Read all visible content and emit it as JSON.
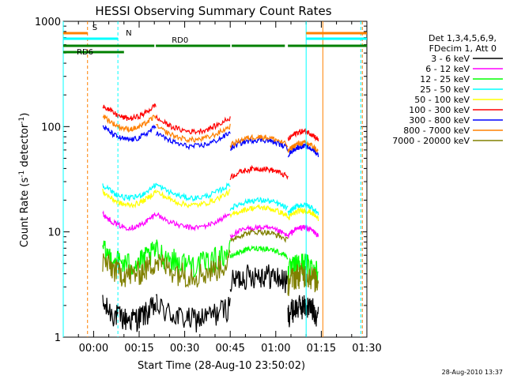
{
  "chart_data": {
    "type": "line",
    "title": "HESSI Observing Summary Count Rates",
    "xlabel": "Start Time (28-Aug-10 23:50:02)",
    "ylabel_main": "Count Rate (s",
    "ylabel_sup1": "-1",
    "ylabel_mid": " detector",
    "ylabel_sup2": "-1",
    "ylabel_end": ")",
    "y_scale": "log",
    "ylim": [
      1,
      1000
    ],
    "xlim_minutes": [
      -10,
      30
    ],
    "x_ticks": [
      {
        "label": "00:00",
        "t": 0
      },
      {
        "label": "00:15",
        "t": 15
      },
      {
        "label": "00:30",
        "t": 30
      },
      {
        "label": "00:45",
        "t": 45
      },
      {
        "label": "01:00",
        "t": 60
      },
      {
        "label": "01:15",
        "t": 75
      },
      {
        "label": "01:30",
        "t": 90
      }
    ],
    "y_ticks": [
      {
        "label": "1",
        "v": 1
      },
      {
        "label": "10",
        "v": 10
      },
      {
        "label": "100",
        "v": 100
      },
      {
        "label": "1000",
        "v": 1000
      }
    ],
    "legend_header": [
      "Det 1,3,4,5,6,9,",
      "FDecim 1, Att 0"
    ],
    "legend_placement": "right",
    "series": [
      {
        "name": "3 - 6 keV",
        "color": "#000000",
        "levels": [
          4.5,
          1.5,
          1.5,
          4.0,
          2.0
        ]
      },
      {
        "name": "6 - 12 keV",
        "color": "#ff00ff",
        "levels": [
          12,
          11,
          11,
          11,
          11
        ]
      },
      {
        "name": "12 - 25 keV",
        "color": "#00ff00",
        "levels": [
          8,
          5,
          5,
          7,
          5
        ]
      },
      {
        "name": "25 - 50 keV",
        "color": "#00ffff",
        "levels": [
          32,
          21,
          21,
          20,
          18
        ]
      },
      {
        "name": "50 - 100 keV",
        "color": "#ffff00",
        "levels": [
          22,
          18,
          18,
          17,
          16
        ]
      },
      {
        "name": "100 - 300 keV",
        "color": "#ff0000",
        "levels": [
          50,
          120,
          90,
          40,
          90
        ]
      },
      {
        "name": "300 - 800 keV",
        "color": "#0000ff",
        "levels": [
          100,
          75,
          65,
          75,
          65
        ]
      },
      {
        "name": "800 - 7000 keV",
        "color": "#ff8000",
        "levels": [
          115,
          95,
          75,
          80,
          70
        ]
      },
      {
        "name": "7000 - 20000 keV",
        "color": "#808000",
        "levels": [
          13,
          4,
          4,
          10,
          4
        ]
      }
    ],
    "segments": [
      {
        "start": 3.0,
        "end": 20.5
      },
      {
        "start": 20.5,
        "end": 45.0
      },
      {
        "start": 45.0,
        "end": 64.0
      },
      {
        "start": 64.0,
        "end": 74.0
      }
    ],
    "flag_bars": [
      {
        "label": "S",
        "color": "#ff8000",
        "level": 0,
        "ranges": [
          [
            -10,
            -2
          ],
          [
            70,
            90
          ]
        ]
      },
      {
        "label": "N",
        "color": "#00ffff",
        "level": 1,
        "ranges": [
          [
            -10,
            8
          ],
          [
            70,
            90
          ]
        ]
      },
      {
        "label": "RD0",
        "color": "#008000",
        "level": 2,
        "ranges": [
          [
            -10,
            20
          ],
          [
            20.5,
            45
          ],
          [
            45.5,
            63
          ],
          [
            64,
            90
          ]
        ]
      },
      {
        "label": "RD6",
        "color": "#008000",
        "level": 3,
        "ranges": [
          [
            -10,
            10
          ]
        ]
      }
    ],
    "vertical_lines": [
      {
        "t": -10,
        "color": "#00ffff",
        "style": "solid"
      },
      {
        "t": -2,
        "color": "#ff8000",
        "style": "dashed"
      },
      {
        "t": 8,
        "color": "#00ffff",
        "style": "dashed"
      },
      {
        "t": 70,
        "color": "#00ffff",
        "style": "solid"
      },
      {
        "t": 75.5,
        "color": "#ff8000",
        "style": "solid"
      },
      {
        "t": 88,
        "color": "#00ffff",
        "style": "dashed"
      },
      {
        "t": 88.5,
        "color": "#ff8000",
        "style": "dashed"
      }
    ]
  },
  "footer_stamp": "28-Aug-2010 13:37"
}
